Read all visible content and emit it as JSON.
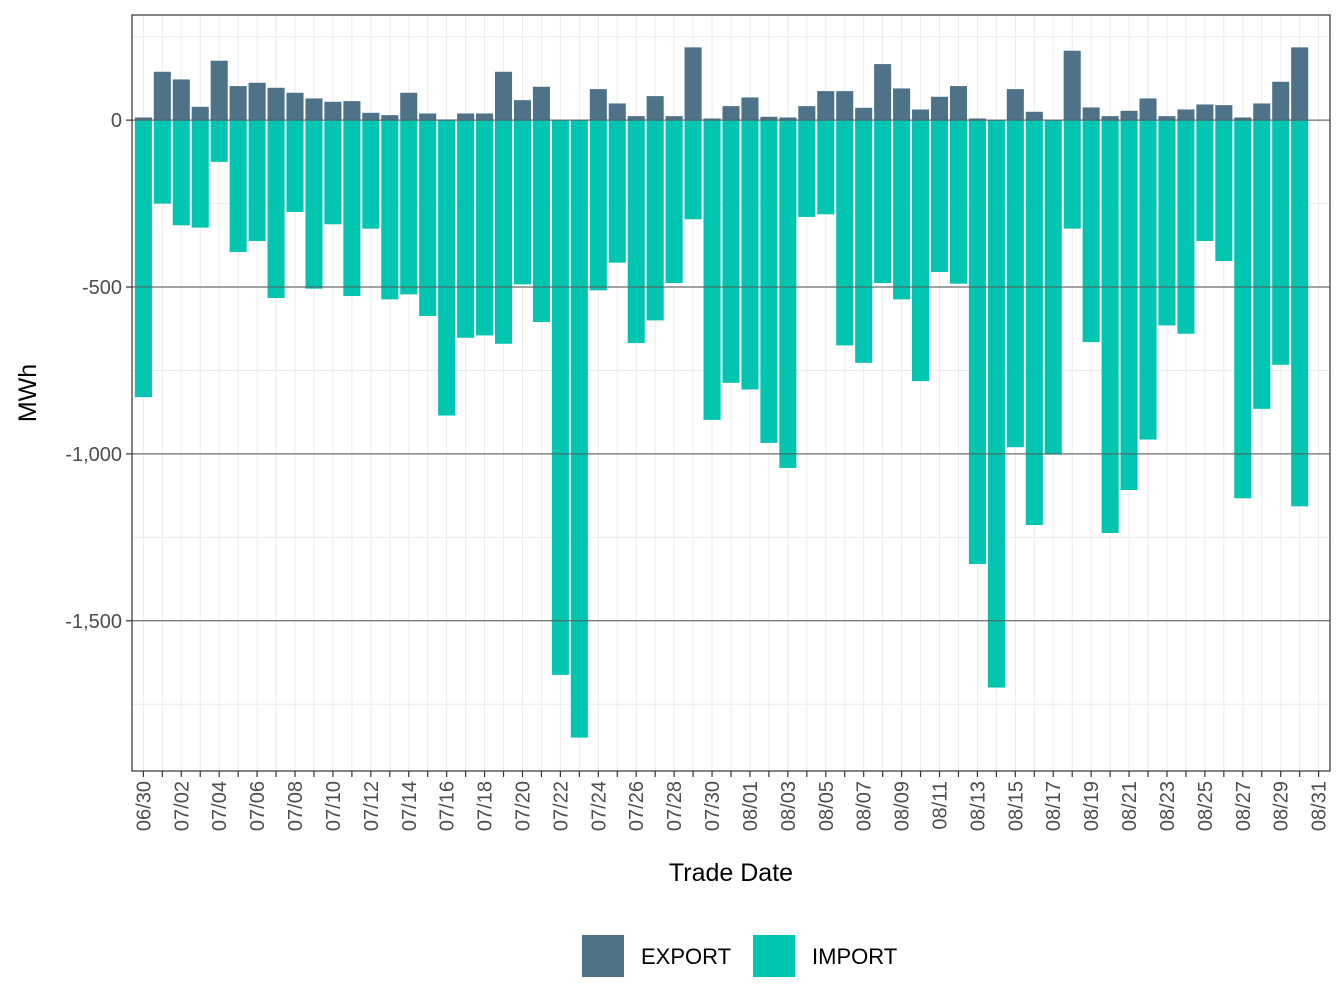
{
  "chart_data": {
    "type": "bar",
    "stacked": true,
    "xlabel": "Trade Date",
    "ylabel": "MWh",
    "ylim": [
      -1950,
      315
    ],
    "y_ticks": [
      0,
      -500,
      -1000,
      -1500
    ],
    "y_tick_labels": [
      "0",
      "-500",
      "-1,000",
      "-1,500"
    ],
    "categories": [
      "06/30",
      "07/01",
      "07/02",
      "07/03",
      "07/04",
      "07/05",
      "07/06",
      "07/07",
      "07/08",
      "07/09",
      "07/10",
      "07/11",
      "07/12",
      "07/13",
      "07/14",
      "07/15",
      "07/16",
      "07/17",
      "07/18",
      "07/19",
      "07/20",
      "07/21",
      "07/22",
      "07/23",
      "07/24",
      "07/25",
      "07/26",
      "07/27",
      "07/28",
      "07/29",
      "07/30",
      "07/31",
      "08/01",
      "08/02",
      "08/03",
      "08/04",
      "08/05",
      "08/06",
      "08/07",
      "08/08",
      "08/09",
      "08/10",
      "08/11",
      "08/12",
      "08/13",
      "08/14",
      "08/15",
      "08/16",
      "08/17",
      "08/18",
      "08/19",
      "08/20",
      "08/21",
      "08/22",
      "08/23",
      "08/24",
      "08/25",
      "08/26",
      "08/27",
      "08/28",
      "08/29",
      "08/30",
      "08/31"
    ],
    "x_tick_labels": [
      "06/30",
      "07/02",
      "07/04",
      "07/06",
      "07/08",
      "07/10",
      "07/12",
      "07/14",
      "07/16",
      "07/18",
      "07/20",
      "07/22",
      "07/24",
      "07/26",
      "07/28",
      "07/30",
      "08/01",
      "08/03",
      "08/05",
      "08/07",
      "08/09",
      "08/11",
      "08/13",
      "08/15",
      "08/17",
      "08/19",
      "08/21",
      "08/23",
      "08/25",
      "08/27",
      "08/29",
      "08/31"
    ],
    "series": [
      {
        "name": "EXPORT",
        "color": "#4e7389",
        "values": [
          8,
          145,
          122,
          40,
          178,
          102,
          112,
          97,
          82,
          65,
          55,
          57,
          22,
          15,
          82,
          20,
          2,
          20,
          20,
          145,
          60,
          100,
          0,
          0,
          93,
          50,
          12,
          72,
          12,
          218,
          5,
          42,
          68,
          10,
          8,
          42,
          87,
          87,
          37,
          168,
          95,
          32,
          70,
          102,
          5,
          0,
          93,
          25,
          0,
          208,
          38,
          12,
          28,
          65,
          12,
          32,
          47,
          45,
          8,
          50,
          115,
          218,
          0
        ]
      },
      {
        "name": "IMPORT",
        "color": "#00c5b0",
        "values": [
          -830,
          -250,
          -315,
          -322,
          -125,
          -395,
          -362,
          -533,
          -275,
          -505,
          -312,
          -527,
          -325,
          -537,
          -522,
          -587,
          -885,
          -652,
          -645,
          -670,
          -492,
          -605,
          -1662,
          -1850,
          -510,
          -427,
          -668,
          -600,
          -488,
          -297,
          -898,
          -787,
          -807,
          -967,
          -1042,
          -290,
          -282,
          -675,
          -727,
          -488,
          -537,
          -782,
          -455,
          -490,
          -1330,
          -1700,
          -980,
          -1213,
          -1002,
          -325,
          -665,
          -1237,
          -1108,
          -957,
          -615,
          -640,
          -362,
          -422,
          -1133,
          -865,
          -733,
          -1157,
          0
        ]
      }
    ],
    "legend": {
      "position": "bottom",
      "items": [
        {
          "label": "EXPORT",
          "color": "#4e7389"
        },
        {
          "label": "IMPORT",
          "color": "#00c5b0"
        }
      ]
    }
  }
}
